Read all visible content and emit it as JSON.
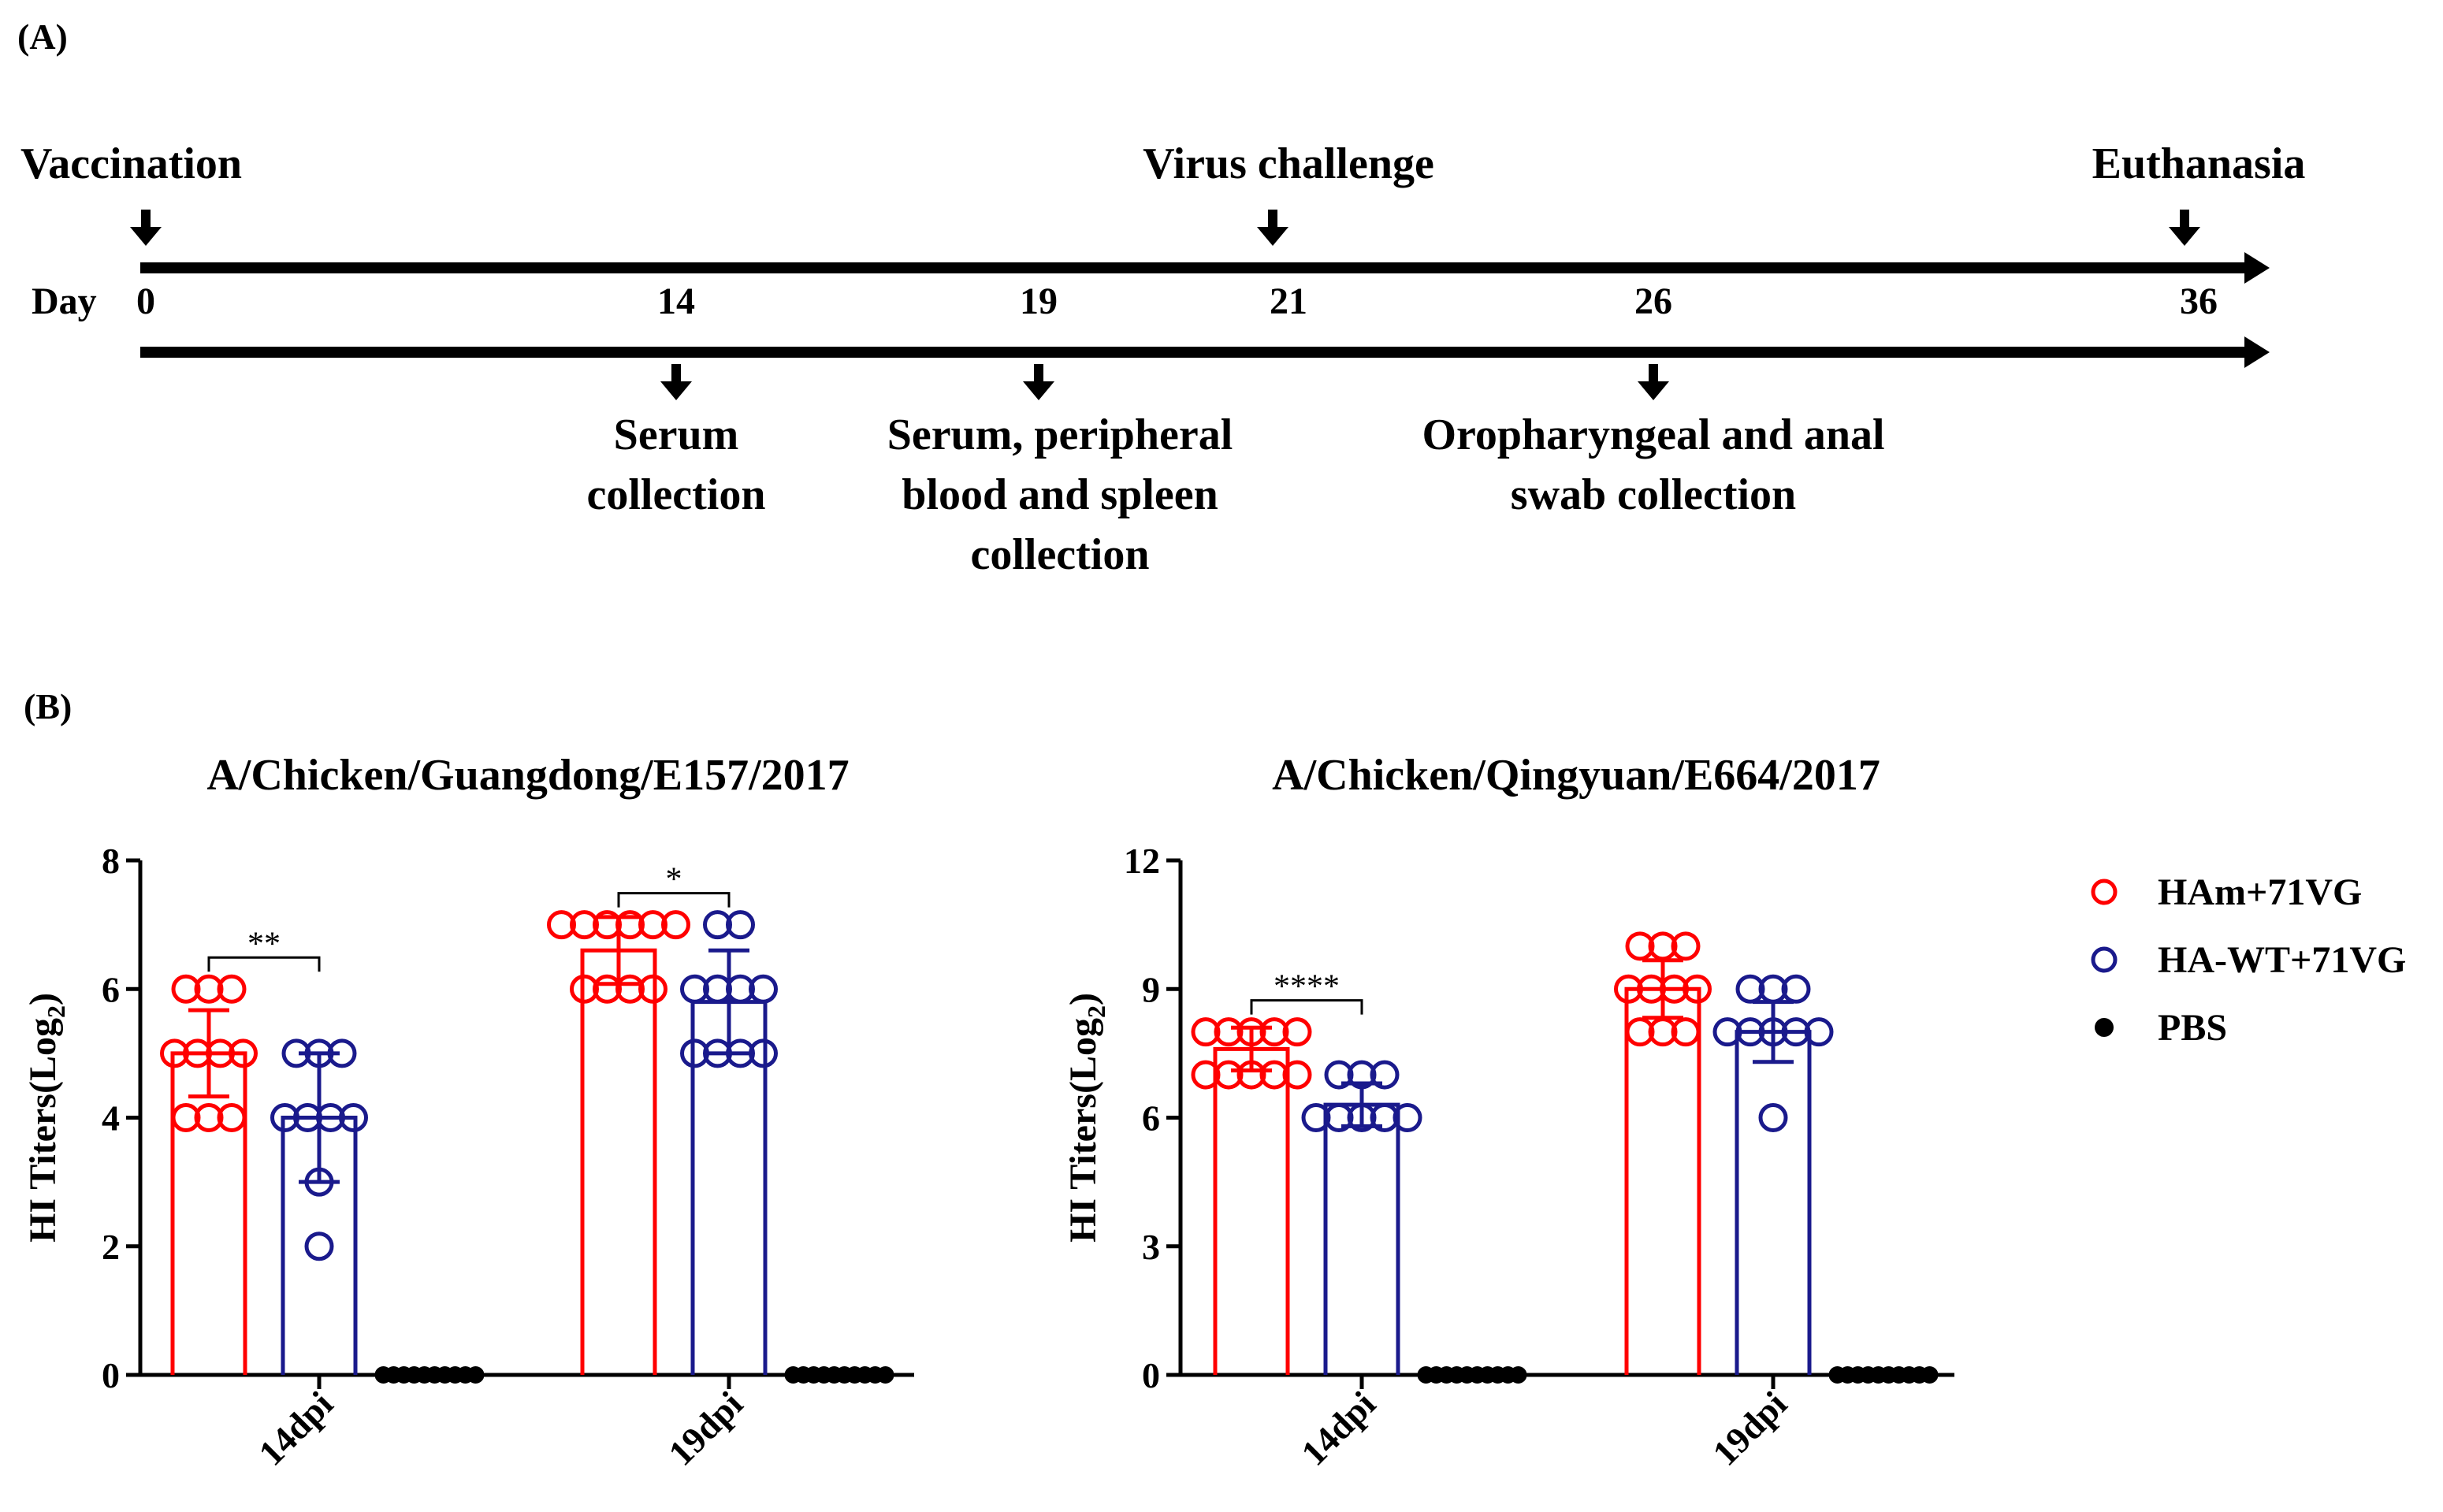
{
  "panel_a": {
    "label": "(A)",
    "day_label": "Day",
    "top_events": [
      "Vaccination",
      "Virus challenge",
      "Euthanasia"
    ],
    "days": [
      "0",
      "14",
      "19",
      "21",
      "26",
      "36"
    ],
    "bottom_events": [
      {
        "day": 14,
        "lines": [
          "Serum",
          "collection"
        ]
      },
      {
        "day": 19,
        "lines": [
          "Serum, peripheral",
          "blood and spleen",
          "collection"
        ]
      },
      {
        "day": 26,
        "lines": [
          "Oropharyngeal and anal",
          "swab collection"
        ]
      }
    ]
  },
  "panel_b": {
    "label": "(B)",
    "legend": [
      {
        "name": "HAm+71VG",
        "color": "#ff0000",
        "marker": "open-circle"
      },
      {
        "name": "HA-WT+71VG",
        "color": "#1a1a8c",
        "marker": "open-circle"
      },
      {
        "name": "PBS",
        "color": "#000000",
        "marker": "filled-circle"
      }
    ]
  },
  "chart_data": [
    {
      "type": "bar",
      "title": "A/Chicken/Guangdong/E157/2017",
      "ylabel": "HI Titers(Log",
      "ylabel_sub": "2",
      "ylabel_close": ")",
      "ylim": [
        0,
        8
      ],
      "yticks": [
        "0",
        "2",
        "4",
        "6",
        "8"
      ],
      "categories": [
        "14dpi",
        "19dpi"
      ],
      "series": [
        {
          "name": "HAm+71VG",
          "color": "#ff0000",
          "values": [
            5.0,
            6.6
          ],
          "errors": [
            0.67,
            0.52
          ],
          "points": [
            [
              6,
              6,
              6,
              5,
              5,
              5,
              5,
              4,
              4,
              4
            ],
            [
              7,
              7,
              7,
              7,
              7,
              7,
              6,
              6,
              6,
              6
            ]
          ]
        },
        {
          "name": "HA-WT+71VG",
          "color": "#1a1a8c",
          "values": [
            4.0,
            5.8
          ],
          "errors": [
            1.0,
            0.8
          ],
          "points": [
            [
              5,
              5,
              5,
              4,
              4,
              4,
              4,
              3,
              2
            ],
            [
              7,
              7,
              6,
              6,
              6,
              6,
              5,
              5,
              5,
              5
            ]
          ]
        },
        {
          "name": "PBS",
          "color": "#000000",
          "values": [
            0,
            0
          ],
          "errors": [
            0,
            0
          ],
          "points": [
            [
              0,
              0,
              0,
              0,
              0,
              0,
              0,
              0,
              0,
              0
            ],
            [
              0,
              0,
              0,
              0,
              0,
              0,
              0,
              0,
              0,
              0
            ]
          ]
        }
      ],
      "significance": [
        {
          "category": "14dpi",
          "label": "**",
          "between": [
            "HAm+71VG",
            "HA-WT+71VG"
          ]
        },
        {
          "category": "19dpi",
          "label": "*",
          "between": [
            "HAm+71VG",
            "HA-WT+71VG"
          ]
        }
      ]
    },
    {
      "type": "bar",
      "title": "A/Chicken/Qingyuan/E664/2017",
      "ylabel": "HI Titers(Log",
      "ylabel_sub": "2",
      "ylabel_close": ")",
      "ylim": [
        0,
        12
      ],
      "yticks": [
        "0",
        "3",
        "6",
        "9",
        "12"
      ],
      "categories": [
        "14dpi",
        "19dpi"
      ],
      "series": [
        {
          "name": "HAm+71VG",
          "color": "#ff0000",
          "values": [
            7.6,
            9.0
          ],
          "errors": [
            0.5,
            0.67
          ],
          "points": [
            [
              8,
              8,
              8,
              8,
              8,
              7,
              7,
              7,
              7,
              7
            ],
            [
              10,
              10,
              10,
              9,
              9,
              9,
              9,
              8,
              8,
              8
            ]
          ]
        },
        {
          "name": "HA-WT+71VG",
          "color": "#1a1a8c",
          "values": [
            6.3,
            8.0
          ],
          "errors": [
            0.5,
            0.7
          ],
          "points": [
            [
              7,
              7,
              7,
              6,
              6,
              6,
              6,
              6
            ],
            [
              9,
              9,
              9,
              8,
              8,
              8,
              8,
              8,
              6
            ]
          ]
        },
        {
          "name": "PBS",
          "color": "#000000",
          "values": [
            0,
            0
          ],
          "errors": [
            0,
            0
          ],
          "points": [
            [
              0,
              0,
              0,
              0,
              0,
              0,
              0,
              0,
              0,
              0
            ],
            [
              0,
              0,
              0,
              0,
              0,
              0,
              0,
              0,
              0,
              0
            ]
          ]
        }
      ],
      "significance": [
        {
          "category": "14dpi",
          "label": "****",
          "between": [
            "HAm+71VG",
            "HA-WT+71VG"
          ]
        }
      ]
    }
  ]
}
